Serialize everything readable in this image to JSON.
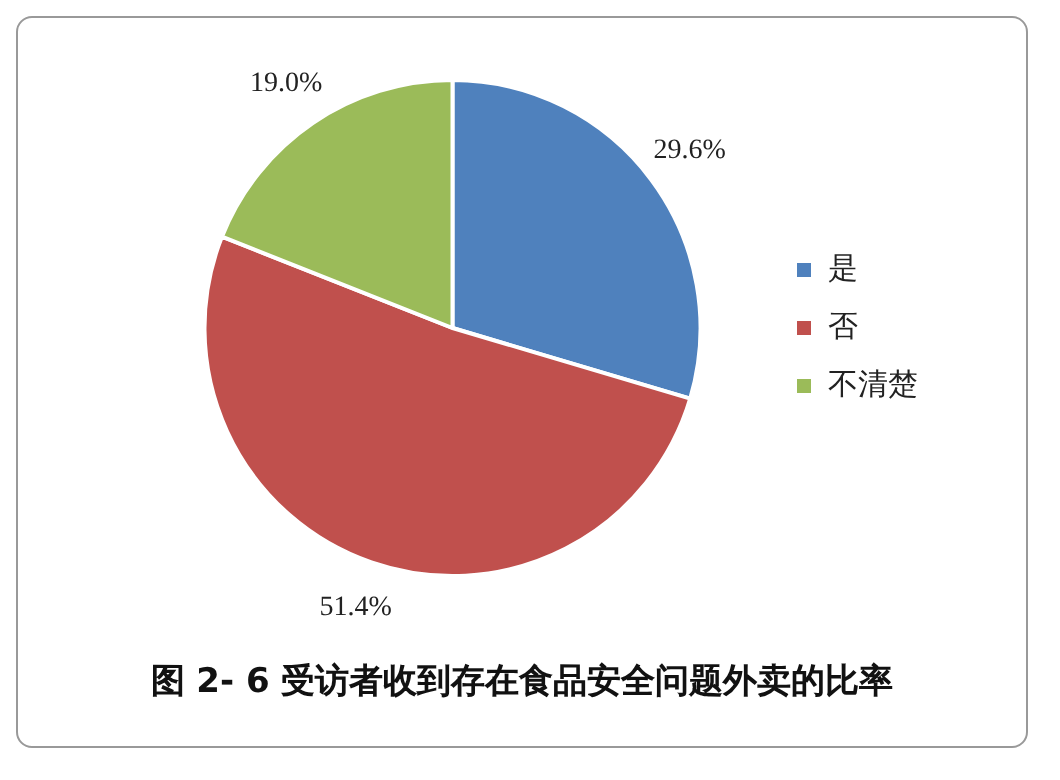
{
  "chart_data": {
    "type": "pie",
    "title": "图 2- 6 受访者收到存在食品安全问题外卖的比率",
    "categories": [
      "是",
      "否",
      "不清楚"
    ],
    "values": [
      29.6,
      51.4,
      19.0
    ],
    "colors": [
      "#4f81bd",
      "#c0504d",
      "#9bbb59"
    ],
    "value_labels": [
      "29.6%",
      "51.4%",
      "19.0%"
    ],
    "legend": "right"
  }
}
